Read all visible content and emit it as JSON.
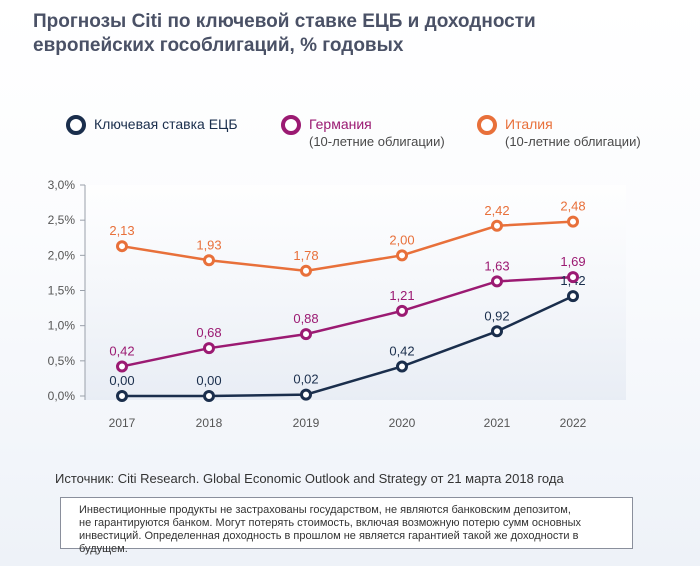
{
  "title_line1": "Прогнозы Citi по ключевой ставке ЕЦБ и доходности",
  "title_line2": "европейских гособлигаций, % годовых",
  "legend": {
    "ecb": "Ключевая ставка ЕЦБ",
    "germany": "Германия",
    "germany_sub": "(10-летние облигации)",
    "italy": "Италия",
    "italy_sub": "(10-летние облигации)"
  },
  "colors": {
    "ecb": "#1a2e4c",
    "germany": "#9b1a72",
    "italy": "#e8703a",
    "axis_text": "#555555"
  },
  "chart_data": {
    "type": "line",
    "categories": [
      "2017",
      "2018",
      "2019",
      "2020",
      "2021",
      "2022"
    ],
    "ylim": [
      0,
      3.0
    ],
    "yticks": [
      "0,0%",
      "0,5%",
      "1,0%",
      "1,5%",
      "2,0%",
      "2,5%",
      "3,0%"
    ],
    "ytick_values": [
      0,
      0.5,
      1.0,
      1.5,
      2.0,
      2.5,
      3.0
    ],
    "grid": false,
    "legend_position": "top",
    "series": [
      {
        "name": "Ключевая ставка ЕЦБ",
        "key": "ecb",
        "values": [
          0.0,
          0.0,
          0.02,
          0.42,
          0.92,
          1.42
        ],
        "labels": [
          "0,00",
          "0,00",
          "0,02",
          "0,42",
          "0,92",
          "1,42"
        ]
      },
      {
        "name": "Германия",
        "key": "germany",
        "values": [
          0.42,
          0.68,
          0.88,
          1.21,
          1.63,
          1.69
        ],
        "labels": [
          "0,42",
          "0,68",
          "0,88",
          "1,21",
          "1,63",
          "1,69"
        ]
      },
      {
        "name": "Италия",
        "key": "italy",
        "values": [
          2.13,
          1.93,
          1.78,
          2.0,
          2.42,
          2.48
        ],
        "labels": [
          "2,13",
          "1,93",
          "1,78",
          "2,00",
          "2,42",
          "2,48"
        ]
      }
    ]
  },
  "source": "Источник: Citi Research. Global Economic Outlook and Strategy от 21 марта 2018 года",
  "disclaimer": [
    "Инвестиционные продукты не застрахованы государством, не являются банковским депозитом,",
    "не гарантируются банком. Могут потерять стоимость, включая возможную потерю сумм основных",
    "инвестиций. Определенная доходность в прошлом не является гарантией такой же доходности в будущем."
  ]
}
